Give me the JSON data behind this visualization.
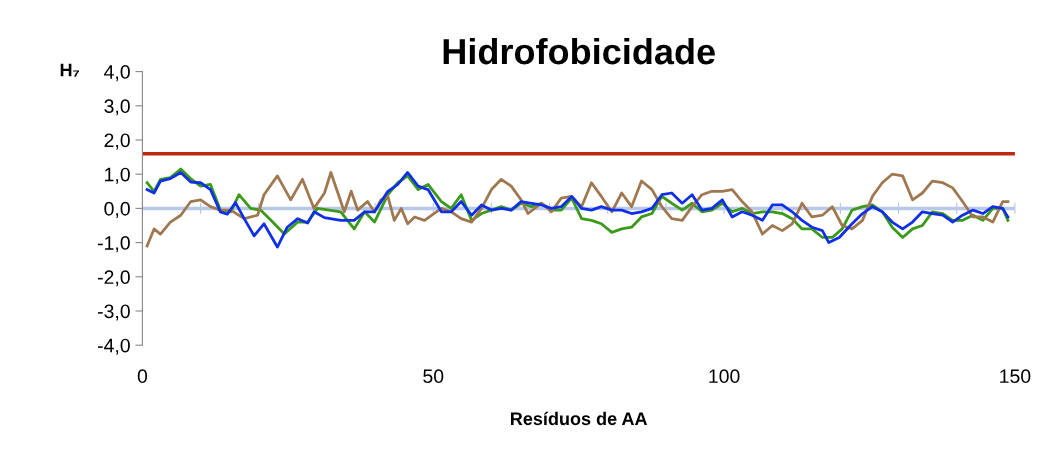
{
  "chart_data": {
    "type": "line",
    "title": "Hidrofobicidade",
    "xlabel": "Resíduos de AA",
    "ylabel": "H₇",
    "xlim": [
      0,
      150
    ],
    "xticks": [
      0,
      {
        "value": 10,
        "label": null
      },
      {
        "value": 20,
        "label": null
      },
      {
        "value": 30,
        "label": null
      },
      {
        "value": 40,
        "label": null
      },
      50,
      {
        "value": 60,
        "label": null
      },
      {
        "value": 70,
        "label": null
      },
      {
        "value": 80,
        "label": null
      },
      {
        "value": 90,
        "label": null
      },
      100,
      {
        "value": 110,
        "label": null
      },
      {
        "value": 120,
        "label": null
      },
      {
        "value": 130,
        "label": null
      },
      {
        "value": 140,
        "label": null
      },
      150
    ],
    "ylim": [
      -4,
      4
    ],
    "yticks": [
      {
        "value": -4,
        "label": "-4,0"
      },
      {
        "value": -3,
        "label": "-3,0"
      },
      {
        "value": -2,
        "label": "-2,0"
      },
      {
        "value": -1,
        "label": "-1,0"
      },
      {
        "value": 0,
        "label": "0,0"
      },
      {
        "value": 1,
        "label": "1,0"
      },
      {
        "value": 2,
        "label": "2,0"
      },
      {
        "value": 3,
        "label": "3,0"
      },
      {
        "value": 4,
        "label": "4,0"
      }
    ],
    "grid": false,
    "legend": false,
    "marker": "none",
    "line_style": "solid",
    "ref_lines": [
      {
        "axis": "y",
        "value": 1.6,
        "color": "#c0280f"
      },
      {
        "axis": "y",
        "value": 0,
        "color": "#b8c8e8"
      }
    ],
    "series": [
      {
        "color": "#3a9a1a",
        "x": [
          0.8,
          2,
          3.1,
          4.8,
          6.6,
          8.3,
          10,
          11.7,
          13.4,
          15.2,
          16.6,
          18.6,
          20.3,
          22.1,
          24.4,
          26.7,
          28.4,
          30.1,
          34.1,
          36.4,
          38.2,
          39.9,
          42.2,
          43.9,
          45.6,
          47.4,
          49.1,
          51.4,
          53.1,
          54.8,
          56.6,
          58.3,
          60,
          61.7,
          63.4,
          65.1,
          66.9,
          68.6,
          70.3,
          72,
          73.8,
          75.5,
          77.2,
          78.9,
          80.7,
          82.4,
          84.1,
          85.8,
          87.6,
          89.3,
          91,
          92.8,
          94.5,
          96.2,
          97.9,
          99.7,
          101.4,
          103.1,
          104.8,
          106.6,
          108.3,
          110,
          111.7,
          113.4,
          115.1,
          116.9,
          118.6,
          120.3,
          122,
          123.8,
          125.5,
          127.2,
          128.9,
          130.7,
          132.4,
          134.1,
          135.8,
          137.6,
          139.3,
          141,
          142.8,
          144.5,
          146.2,
          147.9,
          148.8
        ],
        "values": [
          0.75,
          0.5,
          0.85,
          0.9,
          1.15,
          0.87,
          0.65,
          0.7,
          -0.05,
          -0.1,
          0.4,
          0,
          -0.05,
          -0.35,
          -0.75,
          -0.4,
          -0.4,
          0,
          -0.1,
          -0.6,
          -0.1,
          -0.4,
          0.4,
          0.75,
          0.95,
          0.55,
          0.7,
          0.2,
          0,
          0.4,
          -0.35,
          -0.15,
          -0.05,
          0.05,
          -0.05,
          0.15,
          0.05,
          0.15,
          -0.05,
          -0.05,
          0.3,
          -0.3,
          -0.35,
          -0.45,
          -0.7,
          -0.6,
          -0.55,
          -0.25,
          -0.15,
          0.35,
          0.15,
          -0.05,
          0.15,
          -0.1,
          -0.05,
          0.15,
          -0.1,
          0,
          -0.15,
          -0.1,
          -0.1,
          -0.15,
          -0.3,
          -0.6,
          -0.6,
          -0.85,
          -0.85,
          -0.6,
          -0.05,
          0.05,
          0.1,
          -0.1,
          -0.55,
          -0.85,
          -0.6,
          -0.5,
          -0.1,
          -0.15,
          -0.35,
          -0.35,
          -0.2,
          -0.35,
          0,
          0,
          -0.35
        ]
      },
      {
        "color": "#a07850",
        "x": [
          0.8,
          2,
          3.1,
          4.8,
          6.6,
          8.3,
          10,
          11.7,
          13.4,
          15.2,
          17.5,
          19.8,
          20.9,
          23.2,
          25.5,
          27.5,
          29.5,
          31.3,
          32.4,
          34.7,
          35.9,
          37,
          38.7,
          39.9,
          41,
          42.2,
          43.3,
          44.5,
          45.6,
          46.8,
          48.5,
          51.4,
          53.1,
          54.8,
          56.6,
          58.3,
          60,
          61.7,
          63.4,
          65.1,
          66.3,
          68.6,
          70.3,
          72,
          73.8,
          75.5,
          77.2,
          78.9,
          80.7,
          82.4,
          84.1,
          85.8,
          87.6,
          89.3,
          91,
          92.8,
          94.5,
          96.2,
          97.9,
          99.7,
          101.4,
          103.1,
          104.8,
          106.6,
          108.3,
          110,
          111.7,
          113.4,
          115.1,
          116.9,
          118.6,
          120.3,
          122,
          123.8,
          125.5,
          127.2,
          128.9,
          130.7,
          132.4,
          134.1,
          135.8,
          137.6,
          139.3,
          141,
          142.8,
          144.5,
          146.2,
          147.9,
          148.8
        ],
        "values": [
          -1.1,
          -0.6,
          -0.75,
          -0.4,
          -0.2,
          0.2,
          0.25,
          0.05,
          -0.05,
          -0.05,
          -0.3,
          -0.2,
          0.4,
          0.95,
          0.25,
          0.85,
          0,
          0.45,
          1.05,
          -0.1,
          0.5,
          -0.05,
          0.2,
          -0.1,
          0.25,
          0.35,
          -0.35,
          0,
          -0.45,
          -0.25,
          -0.35,
          0,
          -0.1,
          -0.3,
          -0.4,
          0,
          0.55,
          0.85,
          0.65,
          0.25,
          -0.15,
          0.15,
          -0.1,
          0.3,
          0.35,
          0.05,
          0.75,
          0.35,
          -0.1,
          0.45,
          0.05,
          0.8,
          0.55,
          0.05,
          -0.3,
          -0.35,
          0.05,
          0.4,
          0.5,
          0.5,
          0.55,
          0.2,
          -0.1,
          -0.75,
          -0.5,
          -0.65,
          -0.45,
          0.15,
          -0.25,
          -0.2,
          0.05,
          -0.5,
          -0.6,
          -0.35,
          0.35,
          0.75,
          1.0,
          0.95,
          0.25,
          0.45,
          0.8,
          0.75,
          0.6,
          0.2,
          -0.25,
          -0.25,
          -0.4,
          0.2,
          0.2
        ]
      },
      {
        "color": "#1030e8",
        "x": [
          0.8,
          2,
          3.1,
          4.8,
          6.6,
          8.3,
          10,
          11.7,
          13.4,
          14.6,
          16,
          17.5,
          19.2,
          20.9,
          23.2,
          24.9,
          26.7,
          28.4,
          29.5,
          31.3,
          34.1,
          36.4,
          38.2,
          39.9,
          42.2,
          43.9,
          45.6,
          47.4,
          49.1,
          51.4,
          53.1,
          54.8,
          56.6,
          58.3,
          60,
          61.7,
          63.4,
          65.1,
          66.9,
          68.6,
          70.3,
          72,
          73.8,
          75.5,
          77.2,
          78.9,
          80.7,
          82.4,
          84.1,
          85.8,
          87.6,
          89.3,
          91,
          92.8,
          94.5,
          96.2,
          97.9,
          99.7,
          101.4,
          103.1,
          104.8,
          106.6,
          108.3,
          110,
          111.7,
          113.4,
          115.1,
          116.9,
          118,
          119.8,
          122,
          123.8,
          125.5,
          127.2,
          128.9,
          130.7,
          132.4,
          134.1,
          135.8,
          137.6,
          139.3,
          141,
          142.8,
          144.5,
          146.2,
          147.9,
          148.8
        ],
        "values": [
          0.55,
          0.45,
          0.8,
          0.87,
          1.05,
          0.77,
          0.75,
          0.55,
          -0.1,
          -0.17,
          0.17,
          -0.3,
          -0.8,
          -0.45,
          -1.13,
          -0.55,
          -0.3,
          -0.43,
          -0.1,
          -0.27,
          -0.35,
          -0.35,
          -0.1,
          -0.1,
          0.5,
          0.7,
          1.05,
          0.65,
          0.55,
          -0.1,
          -0.1,
          0.2,
          -0.2,
          0.1,
          -0.05,
          0,
          -0.05,
          0.2,
          0.15,
          0.1,
          0,
          0.05,
          0.35,
          0,
          -0.05,
          0.05,
          -0.05,
          -0.05,
          -0.15,
          -0.1,
          0,
          0.4,
          0.45,
          0.15,
          0.4,
          -0.05,
          0,
          0.25,
          -0.25,
          -0.1,
          -0.2,
          -0.35,
          0.1,
          0.1,
          -0.1,
          -0.35,
          -0.55,
          -0.65,
          -1.0,
          -0.85,
          -0.45,
          -0.15,
          0.05,
          -0.1,
          -0.4,
          -0.6,
          -0.4,
          -0.1,
          -0.15,
          -0.2,
          -0.4,
          -0.2,
          -0.05,
          -0.15,
          0.05,
          0,
          -0.25
        ]
      }
    ]
  }
}
